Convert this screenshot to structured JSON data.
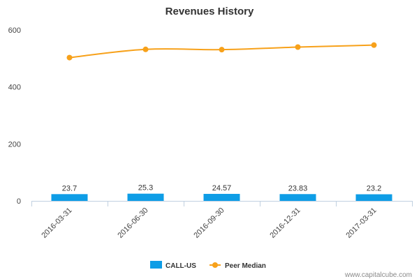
{
  "watermark": "www.capitalcube.com",
  "colors": {
    "bar": "#0e9de6",
    "line": "#f7a11a",
    "axis": "#c0d0e0",
    "text": "#333333"
  },
  "chart_data": {
    "type": "bar",
    "title": "Revenues History",
    "xlabel": "",
    "ylabel": "",
    "categories": [
      "2016-03-31",
      "2016-06-30",
      "2016-09-30",
      "2016-12-31",
      "2017-03-31"
    ],
    "ylim": [
      0,
      600
    ],
    "yticks": [
      0,
      200,
      400,
      600
    ],
    "grid": false,
    "legend_position": "bottom",
    "series": [
      {
        "name": "CALL-US",
        "type": "bar",
        "values": [
          23.7,
          25.3,
          24.57,
          23.83,
          23.2
        ],
        "labels": [
          "23.7",
          "25.3",
          "24.57",
          "23.83",
          "23.2"
        ]
      },
      {
        "name": "Peer Median",
        "type": "line",
        "values": [
          503,
          532,
          531,
          540,
          547
        ]
      }
    ]
  }
}
